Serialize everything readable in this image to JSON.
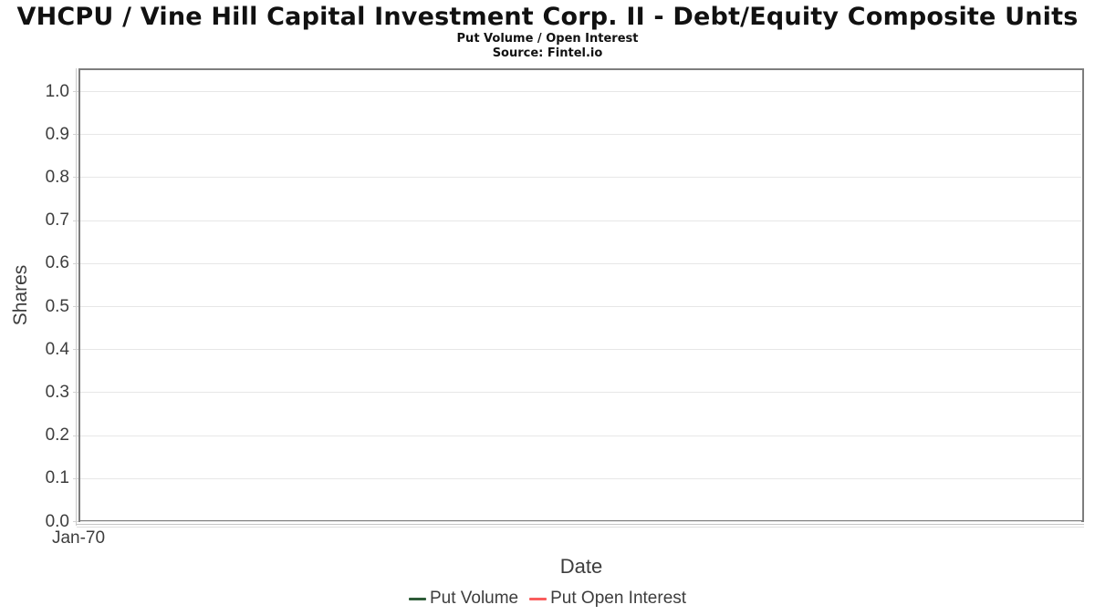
{
  "chart_data": {
    "type": "line",
    "title": "VHCPU / Vine Hill Capital Investment Corp. II - Debt/Equity Composite Units",
    "subtitle": "Put Volume / Open Interest",
    "source": "Source: Fintel.io",
    "xlabel": "Date",
    "ylabel": "Shares",
    "x_ticks": [
      "Jan-70"
    ],
    "y_ticks": [
      "1.0",
      "0.9",
      "0.8",
      "0.7",
      "0.6",
      "0.5",
      "0.4",
      "0.3",
      "0.2",
      "0.1",
      "0.0"
    ],
    "ylim": [
      0.0,
      1.05
    ],
    "grid": true,
    "legend_position": "bottom",
    "series": [
      {
        "name": "Put Volume",
        "color": "#2e5c38",
        "x": [],
        "values": []
      },
      {
        "name": "Put Open Interest",
        "color": "#f95d5d",
        "x": [],
        "values": []
      }
    ],
    "colors": {
      "plot_border": "#7d7d7d",
      "gridline": "#e7e7e7",
      "axis_text": "#3d3d3d",
      "title_text": "#111111"
    }
  }
}
